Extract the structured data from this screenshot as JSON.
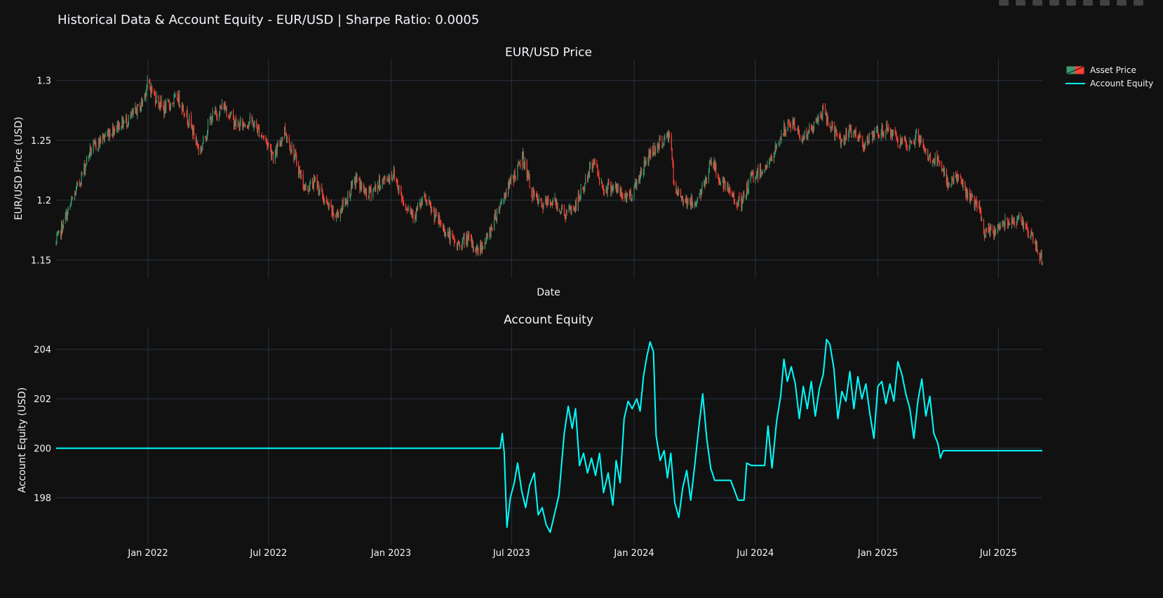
{
  "title": "Historical Data & Account Equity - EUR/USD | Sharpe Ratio: 0.0005",
  "colors": {
    "background": "#111111",
    "grid": "#283442",
    "increasing": "#3d9970",
    "decreasing": "#ff4136",
    "equity_line": "#00ffff",
    "text": "#f2f5fa"
  },
  "legend": {
    "items": [
      {
        "label": "Asset Price",
        "swatch": "candlestick"
      },
      {
        "label": "Account Equity",
        "swatch": "line"
      }
    ]
  },
  "chart_data": [
    {
      "type": "candlestick",
      "title": "EUR/USD Price",
      "xlabel": "Date",
      "ylabel": "EUR/USD Price (USD)",
      "x_range": [
        "2021-08-16",
        "2025-09-05"
      ],
      "ylim": [
        1.135,
        1.318
      ],
      "y_ticks": [
        1.15,
        1.2,
        1.25,
        1.3
      ],
      "y_tick_labels": [
        "1.15",
        "1.2",
        "1.25",
        "1.3"
      ],
      "x_ticks": [
        "2022-01-01",
        "2022-07-01",
        "2023-01-01",
        "2023-07-01",
        "2024-01-01",
        "2024-07-01",
        "2025-01-01",
        "2025-07-01"
      ],
      "grid": true,
      "series_name": "Asset Price",
      "close_path": [
        [
          "2021-08-16",
          1.164
        ],
        [
          "2021-08-30",
          1.185
        ],
        [
          "2021-09-20",
          1.215
        ],
        [
          "2021-10-05",
          1.24
        ],
        [
          "2021-10-25",
          1.252
        ],
        [
          "2021-11-15",
          1.262
        ],
        [
          "2021-12-05",
          1.268
        ],
        [
          "2021-12-22",
          1.28
        ],
        [
          "2022-01-01",
          1.298
        ],
        [
          "2022-01-10",
          1.288
        ],
        [
          "2022-01-25",
          1.276
        ],
        [
          "2022-02-15",
          1.286
        ],
        [
          "2022-03-05",
          1.265
        ],
        [
          "2022-03-20",
          1.24
        ],
        [
          "2022-04-05",
          1.268
        ],
        [
          "2022-04-25",
          1.279
        ],
        [
          "2022-05-15",
          1.262
        ],
        [
          "2022-06-05",
          1.266
        ],
        [
          "2022-06-25",
          1.252
        ],
        [
          "2022-07-10",
          1.236
        ],
        [
          "2022-07-25",
          1.259
        ],
        [
          "2022-08-10",
          1.235
        ],
        [
          "2022-08-25",
          1.209
        ],
        [
          "2022-09-10",
          1.216
        ],
        [
          "2022-09-25",
          1.197
        ],
        [
          "2022-10-10",
          1.186
        ],
        [
          "2022-10-25",
          1.2
        ],
        [
          "2022-11-10",
          1.218
        ],
        [
          "2022-11-25",
          1.204
        ],
        [
          "2022-12-15",
          1.214
        ],
        [
          "2023-01-05",
          1.222
        ],
        [
          "2023-01-20",
          1.198
        ],
        [
          "2023-02-05",
          1.188
        ],
        [
          "2023-02-20",
          1.201
        ],
        [
          "2023-03-10",
          1.185
        ],
        [
          "2023-03-25",
          1.173
        ],
        [
          "2023-04-10",
          1.162
        ],
        [
          "2023-04-25",
          1.168
        ],
        [
          "2023-05-10",
          1.158
        ],
        [
          "2023-05-25",
          1.167
        ],
        [
          "2023-06-10",
          1.192
        ],
        [
          "2023-06-25",
          1.21
        ],
        [
          "2023-07-10",
          1.226
        ],
        [
          "2023-07-18",
          1.236
        ],
        [
          "2023-08-01",
          1.205
        ],
        [
          "2023-08-15",
          1.195
        ],
        [
          "2023-09-01",
          1.2
        ],
        [
          "2023-09-20",
          1.188
        ],
        [
          "2023-10-05",
          1.195
        ],
        [
          "2023-10-20",
          1.215
        ],
        [
          "2023-11-01",
          1.234
        ],
        [
          "2023-11-15",
          1.21
        ],
        [
          "2023-12-01",
          1.212
        ],
        [
          "2023-12-15",
          1.203
        ],
        [
          "2023-12-28",
          1.205
        ],
        [
          "2024-01-10",
          1.222
        ],
        [
          "2024-01-25",
          1.24
        ],
        [
          "2024-02-10",
          1.248
        ],
        [
          "2024-02-25",
          1.255
        ],
        [
          "2024-03-01",
          1.208
        ],
        [
          "2024-03-15",
          1.202
        ],
        [
          "2024-03-30",
          1.196
        ],
        [
          "2024-04-15",
          1.211
        ],
        [
          "2024-04-25",
          1.235
        ],
        [
          "2024-05-10",
          1.215
        ],
        [
          "2024-05-25",
          1.205
        ],
        [
          "2024-06-10",
          1.196
        ],
        [
          "2024-06-25",
          1.219
        ],
        [
          "2024-07-10",
          1.225
        ],
        [
          "2024-07-25",
          1.233
        ],
        [
          "2024-08-10",
          1.256
        ],
        [
          "2024-08-25",
          1.265
        ],
        [
          "2024-09-10",
          1.252
        ],
        [
          "2024-09-25",
          1.26
        ],
        [
          "2024-10-10",
          1.274
        ],
        [
          "2024-10-20",
          1.264
        ],
        [
          "2024-11-05",
          1.25
        ],
        [
          "2024-11-25",
          1.258
        ],
        [
          "2024-12-10",
          1.248
        ],
        [
          "2024-12-28",
          1.254
        ],
        [
          "2025-01-15",
          1.26
        ],
        [
          "2025-02-01",
          1.25
        ],
        [
          "2025-02-15",
          1.243
        ],
        [
          "2025-03-01",
          1.255
        ],
        [
          "2025-03-15",
          1.237
        ],
        [
          "2025-04-01",
          1.232
        ],
        [
          "2025-04-15",
          1.215
        ],
        [
          "2025-05-01",
          1.22
        ],
        [
          "2025-05-15",
          1.205
        ],
        [
          "2025-06-01",
          1.194
        ],
        [
          "2025-06-10",
          1.172
        ],
        [
          "2025-06-25",
          1.174
        ],
        [
          "2025-07-10",
          1.182
        ],
        [
          "2025-07-25",
          1.185
        ],
        [
          "2025-08-10",
          1.18
        ],
        [
          "2025-08-25",
          1.162
        ],
        [
          "2025-09-05",
          1.15
        ]
      ]
    },
    {
      "type": "line",
      "title": "Account Equity",
      "xlabel": "",
      "ylabel": "Account Equity (USD)",
      "x_range": [
        "2021-08-16",
        "2025-09-05"
      ],
      "ylim": [
        196.1,
        204.9
      ],
      "y_ticks": [
        198,
        200,
        202,
        204
      ],
      "y_tick_labels": [
        "198",
        "200",
        "202",
        "204"
      ],
      "x_ticks": [
        "2022-01-01",
        "2022-07-01",
        "2023-01-01",
        "2023-07-01",
        "2024-01-01",
        "2024-07-01",
        "2025-01-01",
        "2025-07-01"
      ],
      "x_tick_labels": [
        "Jan 2022",
        "Jul 2022",
        "Jan 2023",
        "Jul 2023",
        "Jan 2024",
        "Jul 2024",
        "Jan 2025",
        "Jul 2025"
      ],
      "grid": true,
      "series": [
        {
          "name": "Account Equity",
          "points": [
            [
              "2021-08-16",
              200.0
            ],
            [
              "2023-06-14",
              200.0
            ],
            [
              "2023-06-17",
              200.6
            ],
            [
              "2023-06-20",
              199.8
            ],
            [
              "2023-06-24",
              196.8
            ],
            [
              "2023-06-29",
              198.0
            ],
            [
              "2023-07-05",
              198.6
            ],
            [
              "2023-07-10",
              199.4
            ],
            [
              "2023-07-16",
              198.3
            ],
            [
              "2023-07-22",
              197.6
            ],
            [
              "2023-07-28",
              198.5
            ],
            [
              "2023-08-04",
              199.0
            ],
            [
              "2023-08-10",
              197.3
            ],
            [
              "2023-08-16",
              197.6
            ],
            [
              "2023-08-22",
              196.9
            ],
            [
              "2023-08-28",
              196.6
            ],
            [
              "2023-09-04",
              197.4
            ],
            [
              "2023-09-10",
              198.1
            ],
            [
              "2023-09-18",
              200.6
            ],
            [
              "2023-09-24",
              201.7
            ],
            [
              "2023-09-30",
              200.8
            ],
            [
              "2023-10-05",
              201.6
            ],
            [
              "2023-10-11",
              199.3
            ],
            [
              "2023-10-17",
              199.8
            ],
            [
              "2023-10-23",
              199.0
            ],
            [
              "2023-10-29",
              199.6
            ],
            [
              "2023-11-04",
              198.9
            ],
            [
              "2023-11-10",
              199.8
            ],
            [
              "2023-11-16",
              198.2
            ],
            [
              "2023-11-23",
              199.0
            ],
            [
              "2023-11-30",
              197.7
            ],
            [
              "2023-12-05",
              199.5
            ],
            [
              "2023-12-11",
              198.6
            ],
            [
              "2023-12-17",
              201.2
            ],
            [
              "2023-12-23",
              201.9
            ],
            [
              "2023-12-29",
              201.6
            ],
            [
              "2024-01-05",
              202.0
            ],
            [
              "2024-01-10",
              201.5
            ],
            [
              "2024-01-15",
              202.9
            ],
            [
              "2024-01-20",
              203.7
            ],
            [
              "2024-01-25",
              204.3
            ],
            [
              "2024-01-30",
              203.9
            ],
            [
              "2024-02-03",
              200.5
            ],
            [
              "2024-02-09",
              199.5
            ],
            [
              "2024-02-15",
              199.9
            ],
            [
              "2024-02-20",
              198.8
            ],
            [
              "2024-02-25",
              199.8
            ],
            [
              "2024-03-02",
              197.8
            ],
            [
              "2024-03-08",
              197.2
            ],
            [
              "2024-03-14",
              198.4
            ],
            [
              "2024-03-20",
              199.1
            ],
            [
              "2024-03-26",
              197.9
            ],
            [
              "2024-04-01",
              199.3
            ],
            [
              "2024-04-07",
              200.8
            ],
            [
              "2024-04-13",
              202.2
            ],
            [
              "2024-04-19",
              200.4
            ],
            [
              "2024-04-25",
              199.2
            ],
            [
              "2024-05-01",
              198.7
            ],
            [
              "2024-05-25",
              198.7
            ],
            [
              "2024-06-01",
              198.2
            ],
            [
              "2024-06-05",
              197.9
            ],
            [
              "2024-06-14",
              197.9
            ],
            [
              "2024-06-18",
              199.4
            ],
            [
              "2024-06-25",
              199.3
            ],
            [
              "2024-07-15",
              199.3
            ],
            [
              "2024-07-20",
              200.9
            ],
            [
              "2024-07-26",
              199.2
            ],
            [
              "2024-08-02",
              201.1
            ],
            [
              "2024-08-08",
              202.1
            ],
            [
              "2024-08-13",
              203.6
            ],
            [
              "2024-08-18",
              202.7
            ],
            [
              "2024-08-24",
              203.3
            ],
            [
              "2024-08-30",
              202.6
            ],
            [
              "2024-09-05",
              201.2
            ],
            [
              "2024-09-11",
              202.5
            ],
            [
              "2024-09-17",
              201.6
            ],
            [
              "2024-09-23",
              202.7
            ],
            [
              "2024-09-29",
              201.3
            ],
            [
              "2024-10-05",
              202.4
            ],
            [
              "2024-10-11",
              203.0
            ],
            [
              "2024-10-16",
              204.4
            ],
            [
              "2024-10-21",
              204.2
            ],
            [
              "2024-10-27",
              203.2
            ],
            [
              "2024-11-02",
              201.2
            ],
            [
              "2024-11-08",
              202.3
            ],
            [
              "2024-11-14",
              201.9
            ],
            [
              "2024-11-20",
              203.1
            ],
            [
              "2024-11-26",
              201.6
            ],
            [
              "2024-12-02",
              202.9
            ],
            [
              "2024-12-08",
              202.0
            ],
            [
              "2024-12-14",
              202.6
            ],
            [
              "2024-12-20",
              201.4
            ],
            [
              "2024-12-26",
              200.4
            ],
            [
              "2025-01-01",
              202.5
            ],
            [
              "2025-01-07",
              202.7
            ],
            [
              "2025-01-13",
              201.8
            ],
            [
              "2025-01-19",
              202.6
            ],
            [
              "2025-01-25",
              201.9
            ],
            [
              "2025-01-31",
              203.5
            ],
            [
              "2025-02-06",
              203.0
            ],
            [
              "2025-02-12",
              202.2
            ],
            [
              "2025-02-18",
              201.6
            ],
            [
              "2025-02-24",
              200.4
            ],
            [
              "2025-03-02",
              201.9
            ],
            [
              "2025-03-08",
              202.8
            ],
            [
              "2025-03-14",
              201.3
            ],
            [
              "2025-03-20",
              202.1
            ],
            [
              "2025-03-26",
              200.6
            ],
            [
              "2025-04-01",
              200.2
            ],
            [
              "2025-04-05",
              199.6
            ],
            [
              "2025-04-09",
              199.9
            ],
            [
              "2025-04-14",
              199.9
            ],
            [
              "2025-09-05",
              199.9
            ]
          ]
        }
      ]
    }
  ]
}
